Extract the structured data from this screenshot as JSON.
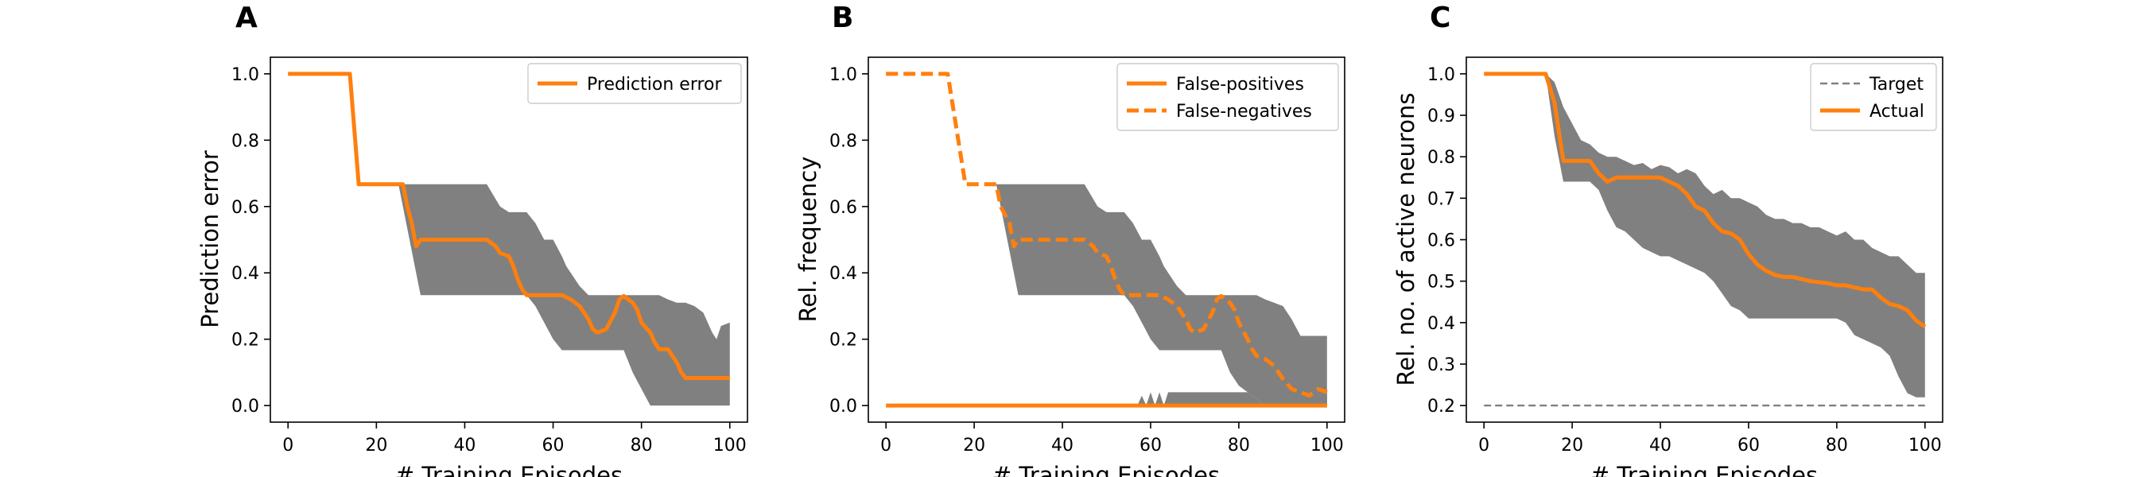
{
  "colors": {
    "accent": "#ff7f0e",
    "band": "#808080",
    "target": "#808080",
    "axis": "#000000"
  },
  "chart_data": [
    {
      "type": "line",
      "panel_label": "A",
      "xlabel": "# Training Episodes",
      "ylabel": "Prediction error",
      "xlim": [
        -4,
        104
      ],
      "ylim": [
        -0.05,
        1.05
      ],
      "xticks": [
        0,
        20,
        40,
        60,
        80,
        100
      ],
      "yticks": [
        0.0,
        0.2,
        0.4,
        0.6,
        0.8,
        1.0
      ],
      "ytick_decimals": 1,
      "legend_position": "top-right",
      "series": [
        {
          "name": "Prediction error",
          "style": "solid",
          "x": [
            0,
            14,
            16,
            26,
            27,
            28,
            29,
            30,
            45,
            47,
            48,
            50,
            51,
            52,
            53,
            54,
            62,
            64,
            66,
            68,
            69,
            70,
            72,
            74,
            75,
            76,
            78,
            79,
            80,
            82,
            83,
            84,
            86,
            88,
            89,
            90,
            92,
            94,
            96,
            98,
            100
          ],
          "y": [
            1.0,
            1.0,
            0.667,
            0.667,
            0.6,
            0.55,
            0.48,
            0.5,
            0.5,
            0.48,
            0.46,
            0.45,
            0.42,
            0.38,
            0.35,
            0.333,
            0.333,
            0.32,
            0.3,
            0.26,
            0.23,
            0.22,
            0.23,
            0.28,
            0.32,
            0.33,
            0.31,
            0.29,
            0.25,
            0.22,
            0.19,
            0.17,
            0.17,
            0.13,
            0.1,
            0.083,
            0.083,
            0.083,
            0.083,
            0.083,
            0.083
          ]
        }
      ],
      "band": {
        "x": [
          25,
          26,
          29,
          30,
          31,
          36,
          41,
          45,
          48,
          50,
          54,
          56,
          58,
          60,
          62,
          63,
          64,
          66,
          68,
          70,
          72,
          74,
          76,
          78,
          80,
          82,
          84,
          86,
          88,
          90,
          92,
          94,
          95,
          96,
          97,
          98,
          100
        ],
        "upper": [
          0.667,
          0.667,
          0.667,
          0.667,
          0.667,
          0.667,
          0.667,
          0.667,
          0.6,
          0.583,
          0.583,
          0.55,
          0.5,
          0.5,
          0.45,
          0.42,
          0.4,
          0.36,
          0.333,
          0.333,
          0.333,
          0.333,
          0.333,
          0.333,
          0.333,
          0.333,
          0.333,
          0.32,
          0.31,
          0.31,
          0.3,
          0.28,
          0.25,
          0.22,
          0.2,
          0.24,
          0.25
        ],
        "lower": [
          0.667,
          0.6,
          0.4,
          0.333,
          0.333,
          0.333,
          0.333,
          0.333,
          0.333,
          0.333,
          0.333,
          0.3,
          0.25,
          0.2,
          0.167,
          0.167,
          0.167,
          0.167,
          0.167,
          0.167,
          0.167,
          0.167,
          0.167,
          0.1,
          0.05,
          0.0,
          0.0,
          0.0,
          0.0,
          0.0,
          0.0,
          0.0,
          0.0,
          0.0,
          0.0,
          0.0,
          0.0
        ]
      }
    },
    {
      "type": "line",
      "panel_label": "B",
      "xlabel": "# Training Episodes",
      "ylabel": "Rel. frequency",
      "xlim": [
        -4,
        104
      ],
      "ylim": [
        -0.05,
        1.05
      ],
      "xticks": [
        0,
        20,
        40,
        60,
        80,
        100
      ],
      "yticks": [
        0.0,
        0.2,
        0.4,
        0.6,
        0.8,
        1.0
      ],
      "ytick_decimals": 1,
      "legend_position": "top-right",
      "series": [
        {
          "name": "False-positives",
          "style": "solid",
          "x": [
            0,
            100
          ],
          "y": [
            0.0,
            0.0
          ]
        },
        {
          "name": "False-negatives",
          "style": "dashed",
          "x": [
            0,
            14,
            18,
            25,
            26,
            28,
            29,
            30,
            45,
            47,
            48,
            50,
            51,
            52,
            53,
            54,
            62,
            64,
            66,
            68,
            69,
            70,
            72,
            74,
            75,
            76,
            78,
            79,
            80,
            82,
            83,
            84,
            86,
            88,
            89,
            90,
            92,
            94,
            96,
            98,
            100
          ],
          "y": [
            1.0,
            1.0,
            0.667,
            0.667,
            0.6,
            0.55,
            0.48,
            0.5,
            0.5,
            0.48,
            0.46,
            0.45,
            0.42,
            0.38,
            0.35,
            0.333,
            0.333,
            0.32,
            0.3,
            0.26,
            0.23,
            0.22,
            0.23,
            0.28,
            0.32,
            0.33,
            0.31,
            0.29,
            0.25,
            0.2,
            0.17,
            0.15,
            0.14,
            0.12,
            0.1,
            0.08,
            0.05,
            0.04,
            0.03,
            0.05,
            0.04
          ]
        }
      ],
      "band": {
        "x": [
          25,
          26,
          29,
          30,
          31,
          36,
          41,
          45,
          48,
          50,
          54,
          56,
          58,
          60,
          62,
          63,
          64,
          66,
          68,
          70,
          72,
          74,
          76,
          78,
          80,
          82,
          84,
          86,
          88,
          90,
          92,
          94,
          95,
          96,
          97,
          98,
          100
        ],
        "upper": [
          0.667,
          0.667,
          0.667,
          0.667,
          0.667,
          0.667,
          0.667,
          0.667,
          0.6,
          0.583,
          0.583,
          0.55,
          0.5,
          0.5,
          0.45,
          0.42,
          0.4,
          0.36,
          0.333,
          0.333,
          0.333,
          0.333,
          0.333,
          0.333,
          0.333,
          0.333,
          0.333,
          0.32,
          0.31,
          0.3,
          0.26,
          0.21,
          0.21,
          0.21,
          0.21,
          0.21,
          0.21
        ],
        "lower": [
          0.667,
          0.6,
          0.4,
          0.333,
          0.333,
          0.333,
          0.333,
          0.333,
          0.333,
          0.333,
          0.333,
          0.3,
          0.25,
          0.2,
          0.167,
          0.167,
          0.167,
          0.167,
          0.167,
          0.167,
          0.167,
          0.167,
          0.167,
          0.1,
          0.06,
          0.04,
          0.02,
          0.0,
          0.0,
          0.0,
          0.0,
          0.0,
          0.0,
          0.0,
          0.0,
          0.0,
          0.0
        ]
      },
      "band2": {
        "x": [
          57,
          58,
          59,
          60,
          61,
          62,
          63,
          64,
          65,
          66,
          68,
          70,
          72,
          74,
          76,
          78,
          80,
          82,
          84,
          86,
          88,
          90,
          92,
          94,
          96,
          98,
          100
        ],
        "upper": [
          0.0,
          0.03,
          0.0,
          0.04,
          0.0,
          0.04,
          0.0,
          0.04,
          0.04,
          0.04,
          0.04,
          0.04,
          0.04,
          0.04,
          0.04,
          0.04,
          0.04,
          0.04,
          0.02,
          0.0,
          0.04,
          0.04,
          0.04,
          0.04,
          0.04,
          0.04,
          0.04
        ],
        "lower": [
          0.0,
          0.0,
          0.0,
          0.0,
          0.0,
          0.0,
          0.0,
          0.0,
          0.0,
          0.0,
          0.0,
          0.0,
          0.0,
          0.0,
          0.0,
          0.0,
          0.0,
          0.0,
          0.0,
          0.0,
          0.0,
          0.0,
          0.0,
          0.0,
          0.0,
          0.0,
          0.0
        ]
      }
    },
    {
      "type": "line",
      "panel_label": "C",
      "xlabel": "# Training Episodes",
      "ylabel": "Rel. no. of active neurons",
      "xlim": [
        -4,
        104
      ],
      "ylim": [
        0.16,
        1.04
      ],
      "xticks": [
        0,
        20,
        40,
        60,
        80,
        100
      ],
      "yticks": [
        0.2,
        0.3,
        0.4,
        0.5,
        0.6,
        0.7,
        0.8,
        0.9,
        1.0
      ],
      "ytick_decimals": 1,
      "legend_position": "top-right",
      "series": [
        {
          "name": "Target",
          "style": "thin-dashed",
          "x": [
            0,
            100
          ],
          "y": [
            0.2,
            0.2
          ]
        },
        {
          "name": "Actual",
          "style": "solid",
          "x": [
            0,
            14,
            16,
            18,
            20,
            24,
            26,
            28,
            30,
            34,
            38,
            40,
            42,
            44,
            46,
            48,
            50,
            52,
            54,
            56,
            58,
            60,
            62,
            64,
            66,
            68,
            70,
            74,
            78,
            80,
            82,
            84,
            86,
            88,
            90,
            92,
            94,
            96,
            98,
            100
          ],
          "y": [
            1.0,
            1.0,
            0.93,
            0.79,
            0.79,
            0.79,
            0.76,
            0.74,
            0.75,
            0.75,
            0.75,
            0.75,
            0.74,
            0.73,
            0.71,
            0.68,
            0.67,
            0.64,
            0.62,
            0.615,
            0.6,
            0.565,
            0.54,
            0.525,
            0.515,
            0.51,
            0.51,
            0.5,
            0.495,
            0.49,
            0.49,
            0.485,
            0.48,
            0.48,
            0.46,
            0.445,
            0.44,
            0.43,
            0.405,
            0.39
          ]
        }
      ],
      "band": {
        "x": [
          14,
          16,
          18,
          20,
          22,
          24,
          26,
          28,
          30,
          32,
          34,
          36,
          38,
          40,
          42,
          44,
          46,
          48,
          50,
          52,
          54,
          56,
          58,
          60,
          62,
          64,
          66,
          68,
          70,
          72,
          74,
          76,
          78,
          80,
          82,
          84,
          86,
          88,
          90,
          92,
          94,
          96,
          98,
          100
        ],
        "upper": [
          1.0,
          0.98,
          0.92,
          0.88,
          0.84,
          0.83,
          0.81,
          0.8,
          0.8,
          0.79,
          0.78,
          0.785,
          0.77,
          0.78,
          0.775,
          0.76,
          0.77,
          0.76,
          0.73,
          0.71,
          0.72,
          0.7,
          0.7,
          0.69,
          0.68,
          0.66,
          0.65,
          0.65,
          0.64,
          0.64,
          0.63,
          0.63,
          0.62,
          0.61,
          0.62,
          0.6,
          0.6,
          0.58,
          0.57,
          0.56,
          0.56,
          0.54,
          0.52,
          0.52
        ],
        "lower": [
          1.0,
          0.85,
          0.74,
          0.74,
          0.74,
          0.74,
          0.72,
          0.67,
          0.63,
          0.62,
          0.6,
          0.58,
          0.57,
          0.56,
          0.56,
          0.55,
          0.54,
          0.53,
          0.52,
          0.5,
          0.47,
          0.44,
          0.43,
          0.41,
          0.41,
          0.41,
          0.41,
          0.41,
          0.41,
          0.41,
          0.41,
          0.41,
          0.41,
          0.41,
          0.4,
          0.37,
          0.36,
          0.35,
          0.34,
          0.32,
          0.27,
          0.23,
          0.22,
          0.22
        ]
      }
    }
  ]
}
